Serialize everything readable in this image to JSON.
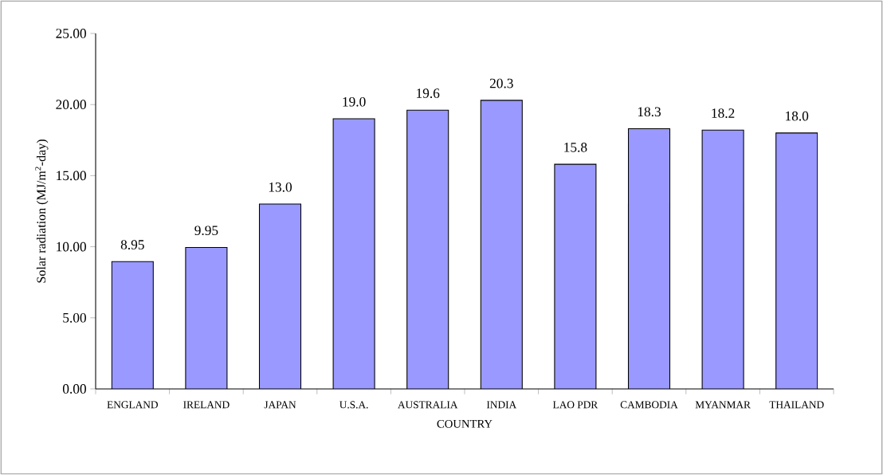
{
  "chart_data": {
    "type": "bar",
    "categories": [
      "ENGLAND",
      "IRELAND",
      "JAPAN",
      "U.S.A.",
      "AUSTRALIA",
      "INDIA",
      "LAO PDR",
      "CAMBODIA",
      "MYANMAR",
      "THAILAND"
    ],
    "values": [
      8.95,
      9.95,
      13.0,
      19.0,
      19.6,
      20.3,
      15.8,
      18.3,
      18.2,
      18.0
    ],
    "value_labels": [
      "8.95",
      "9.95",
      "13.0",
      "19.0",
      "19.6",
      "20.3",
      "15.8",
      "18.3",
      "18.2",
      "18.0"
    ],
    "color": "#9999ff",
    "xlabel": "COUNTRY",
    "ylabel": "Solar radiation (MJ/m$^{2}$-day)",
    "ylim": [
      0,
      25
    ],
    "yticks": [
      {
        "value": 0,
        "label": "0.00"
      },
      {
        "value": 5,
        "label": "5.00"
      },
      {
        "value": 10,
        "label": "10.00"
      },
      {
        "value": 15,
        "label": "15.00"
      },
      {
        "value": 20,
        "label": "20.00"
      },
      {
        "value": 25,
        "label": "25.00"
      }
    ],
    "grid": false
  }
}
